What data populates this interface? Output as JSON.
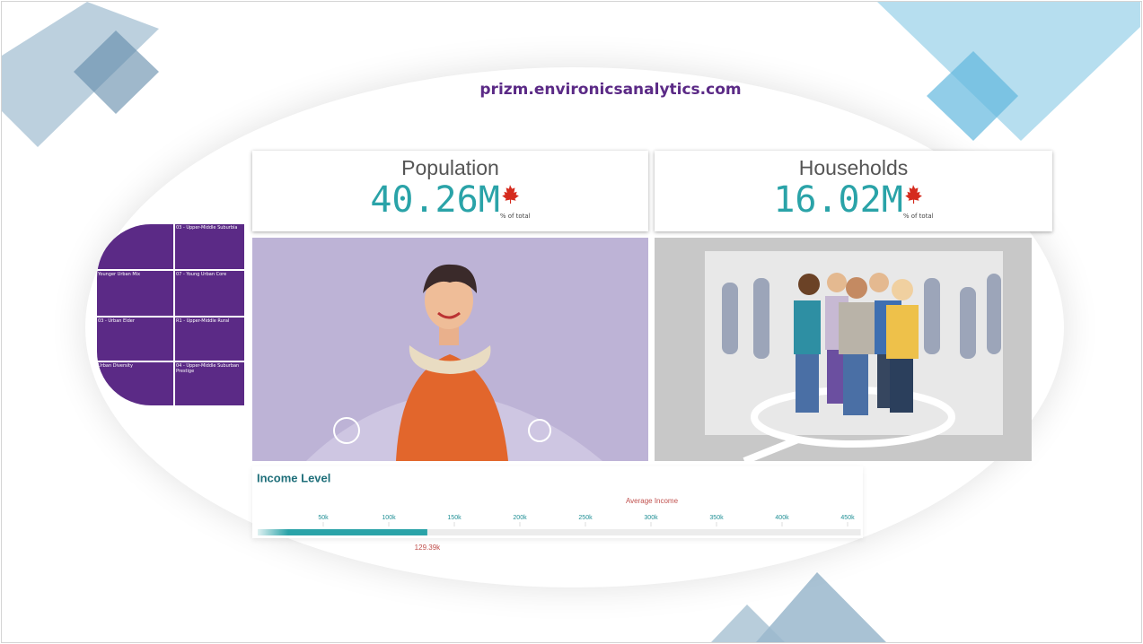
{
  "header": {
    "url": "prizm.environicsanalytics.com"
  },
  "cards": [
    {
      "title": "Population",
      "value": "40.26M",
      "note": "% of total"
    },
    {
      "title": "Households",
      "value": "16.02M",
      "note": "% of total"
    }
  ],
  "treemap": {
    "labels": [
      "03 - Upper-Middle Suburbia",
      "Younger Urban Mix",
      "07 - Young Urban Core",
      "03 - Urban Elder",
      "R1 - Upper-Middle Rural",
      "Urban Diversity",
      "04 - Upper-Middle Suburban Prestige"
    ]
  },
  "chart_data": {
    "type": "bar",
    "title": "Income Level",
    "axis_label": "Average Income",
    "xlim": [
      0,
      460
    ],
    "xticks": [
      {
        "value": 50,
        "label": "50k"
      },
      {
        "value": 100,
        "label": "100k"
      },
      {
        "value": 150,
        "label": "150k"
      },
      {
        "value": 200,
        "label": "200k"
      },
      {
        "value": 250,
        "label": "250k"
      },
      {
        "value": 300,
        "label": "300k"
      },
      {
        "value": 350,
        "label": "350k"
      },
      {
        "value": 400,
        "label": "400k"
      },
      {
        "value": 450,
        "label": "450k"
      }
    ],
    "values": [
      129.39
    ],
    "value_labels": [
      "129.39k"
    ],
    "color": "#2aa3a8"
  }
}
